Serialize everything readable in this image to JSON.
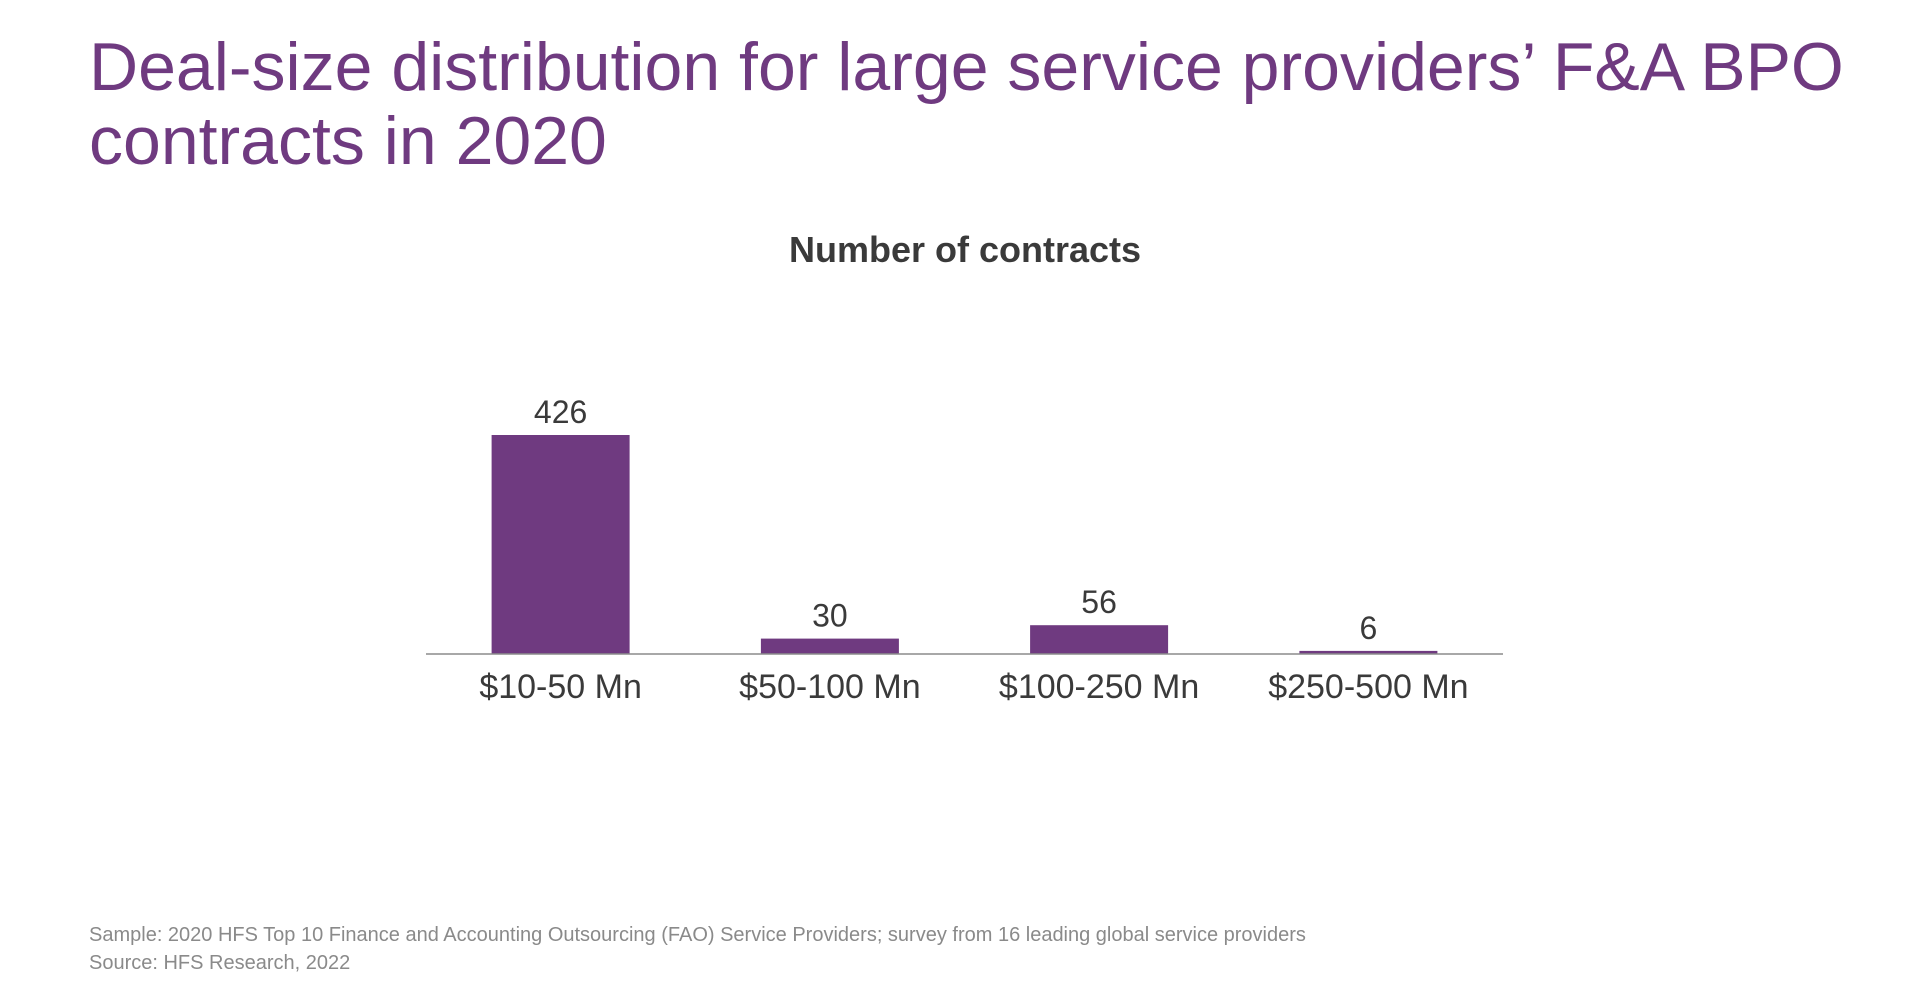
{
  "slide": {
    "title": "Deal-size distribution for large service providers’ F&A BPO contracts in 2020",
    "footnote_sample": "Sample: 2020 HFS Top 10 Finance and Accounting Outsourcing (FAO) Service Providers; survey from 16 leading global service providers",
    "footnote_source": "Source: HFS Research, 2022"
  },
  "colors": {
    "title": "#6f3a80",
    "bar": "#6f3a80",
    "axis": "#8c8c8c",
    "text": "#3a3a3a"
  },
  "chart_data": {
    "type": "bar",
    "title": "Number of contracts",
    "categories": [
      "$10-50 Mn",
      "$50-100 Mn",
      "$100-250 Mn",
      "$250-500 Mn"
    ],
    "values": [
      426,
      30,
      56,
      6
    ],
    "data_labels": [
      "426",
      "30",
      "56",
      "6"
    ],
    "xlabel": "",
    "ylabel": "",
    "ylim": [
      0,
      426
    ],
    "grid": false,
    "legend": "none",
    "value_axis_shown": false
  }
}
